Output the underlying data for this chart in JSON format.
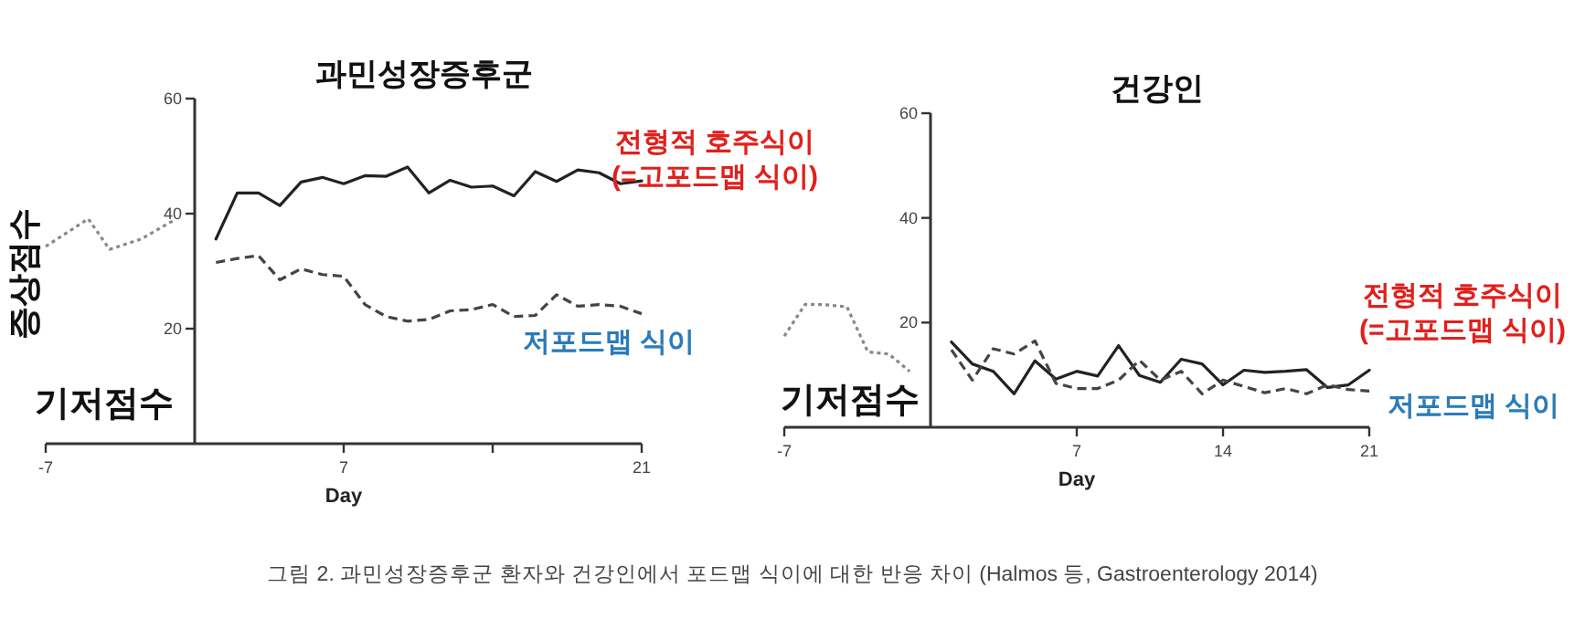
{
  "chart_data": [
    {
      "type": "line",
      "title": "과민성장증후군",
      "xlabel": "Day",
      "ylabel": "증상점수",
      "xlim": [
        -7,
        21
      ],
      "ylim": [
        0,
        60
      ],
      "xticks": [
        -7,
        7,
        {
          "value": 14,
          "label": null
        },
        21
      ],
      "yticks": [
        20,
        40,
        60
      ],
      "series": [
        {
          "color": "#222222",
          "line_style": "solid",
          "x": [
            1,
            2,
            3,
            4,
            5,
            6,
            7,
            8,
            9,
            10,
            11,
            12,
            13,
            14,
            15,
            16,
            17,
            18,
            19,
            20,
            21
          ],
          "values": [
            35.6,
            43.6,
            43.6,
            41.4,
            45.5,
            46.3,
            45.2,
            46.6,
            46.5,
            48.1,
            43.6,
            45.8,
            44.6,
            44.8,
            43.1,
            47.3,
            45.6,
            47.6,
            47.1,
            45.2,
            45.7
          ]
        },
        {
          "color": "#444444",
          "line_style": "dashed",
          "x": [
            1,
            2,
            3,
            4,
            5,
            6,
            7,
            8,
            9,
            10,
            11,
            12,
            13,
            14,
            15,
            16,
            17,
            18,
            19,
            20,
            21
          ],
          "values": [
            31.5,
            32.2,
            32.7,
            28.5,
            30.4,
            29.4,
            29.1,
            24.2,
            22.1,
            21.3,
            21.6,
            23.1,
            23.3,
            24.2,
            22.1,
            22.3,
            25.9,
            23.9,
            24.2,
            23.9,
            22.6
          ]
        },
        {
          "color": "#888888",
          "line_style": "dotted",
          "x": [
            -7,
            -5,
            -4,
            -2.5,
            -1
          ],
          "values": [
            34.3,
            39.1,
            33.8,
            35.6,
            38.8
          ]
        }
      ],
      "annotations": [
        "전형적 호주식이\n(=고포드맵 식이)",
        "저포드맵 식이",
        "기저점수",
        "그림 2. 과민성장증후군 환자와 건강인에서 포드맵 식이에 대한 반응 차이 (Halmos 등, Gastroenterology 2014)"
      ]
    },
    {
      "type": "line",
      "title": "건강인",
      "xlabel": "Day",
      "xlim": [
        -7,
        21
      ],
      "ylim": [
        0,
        60
      ],
      "xticks": [
        -7,
        7,
        14,
        21
      ],
      "yticks": [
        20,
        40,
        60
      ],
      "series": [
        {
          "color": "#222222",
          "line_style": "solid",
          "x": [
            1,
            2,
            3,
            4,
            5,
            6,
            7,
            8,
            9,
            10,
            11,
            12,
            13,
            14,
            15,
            16,
            17,
            18,
            19,
            20,
            21
          ],
          "values": [
            16.3,
            12.1,
            10.7,
            6.4,
            12.7,
            9.2,
            10.7,
            9.8,
            15.6,
            9.9,
            8.6,
            13.0,
            12.1,
            8.1,
            10.9,
            10.5,
            10.7,
            11.0,
            7.6,
            8.1,
            10.9
          ]
        },
        {
          "color": "#444444",
          "line_style": "dashed",
          "x": [
            1,
            2,
            3,
            4,
            5,
            6,
            7,
            8,
            9,
            10,
            11,
            12,
            13,
            14,
            15,
            16,
            17,
            18,
            19,
            20,
            21
          ],
          "values": [
            14.8,
            9.0,
            15.0,
            14.0,
            16.5,
            8.4,
            7.4,
            7.4,
            9.0,
            12.8,
            9.0,
            10.7,
            6.4,
            9.0,
            7.8,
            6.6,
            7.4,
            6.4,
            8.1,
            7.2,
            6.9
          ]
        },
        {
          "color": "#888888",
          "line_style": "dotted",
          "x": [
            -7,
            -6,
            -5,
            -4,
            -3,
            -2,
            -1
          ],
          "values": [
            17.4,
            23.5,
            23.4,
            23.0,
            14.4,
            14.0,
            10.7
          ]
        }
      ],
      "annotations": [
        "전형적 호주식이\n(=고포드맵 식이)",
        "저포드맵 식이",
        "기저점수"
      ]
    }
  ]
}
